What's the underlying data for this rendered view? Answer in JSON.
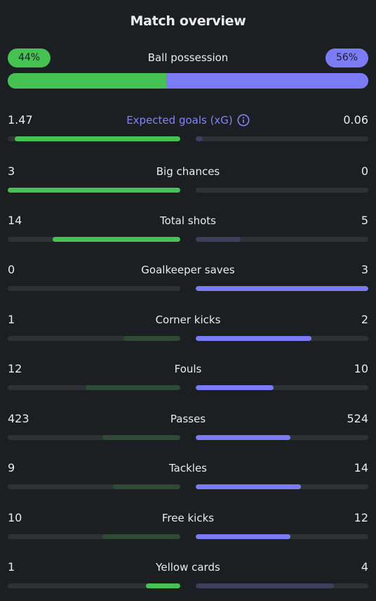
{
  "title": "Match overview",
  "possession": {
    "label": "Ball possession",
    "home": "44%",
    "away": "56%",
    "home_fraction": 0.44
  },
  "colors": {
    "home": "#46c252",
    "away": "#7b7cf5",
    "accent_text": "#8384f7"
  },
  "stats": [
    {
      "label": "Expected goals (xG)",
      "home": "1.47",
      "away": "0.06",
      "home_fill": 0.96,
      "away_fill": 0.04,
      "home_style": "win",
      "away_style": "lose",
      "info": true
    },
    {
      "label": "Big chances",
      "home": "3",
      "away": "0",
      "home_fill": 1.0,
      "away_fill": 0.0,
      "home_style": "win",
      "away_style": "lose"
    },
    {
      "label": "Total shots",
      "home": "14",
      "away": "5",
      "home_fill": 0.74,
      "away_fill": 0.26,
      "home_style": "win",
      "away_style": "lose"
    },
    {
      "label": "Goalkeeper saves",
      "home": "0",
      "away": "3",
      "home_fill": 0.0,
      "away_fill": 1.0,
      "home_style": "lose",
      "away_style": "win"
    },
    {
      "label": "Corner kicks",
      "home": "1",
      "away": "2",
      "home_fill": 0.33,
      "away_fill": 0.67,
      "home_style": "lose",
      "away_style": "win"
    },
    {
      "label": "Fouls",
      "home": "12",
      "away": "10",
      "home_fill": 0.55,
      "away_fill": 0.45,
      "home_style": "lose",
      "away_style": "win"
    },
    {
      "label": "Passes",
      "home": "423",
      "away": "524",
      "home_fill": 0.45,
      "away_fill": 0.55,
      "home_style": "lose",
      "away_style": "win"
    },
    {
      "label": "Tackles",
      "home": "9",
      "away": "14",
      "home_fill": 0.39,
      "away_fill": 0.61,
      "home_style": "lose",
      "away_style": "win"
    },
    {
      "label": "Free kicks",
      "home": "10",
      "away": "12",
      "home_fill": 0.45,
      "away_fill": 0.55,
      "home_style": "lose",
      "away_style": "win"
    },
    {
      "label": "Yellow cards",
      "home": "1",
      "away": "4",
      "home_fill": 0.2,
      "away_fill": 0.8,
      "home_style": "win",
      "away_style": "lose"
    }
  ]
}
